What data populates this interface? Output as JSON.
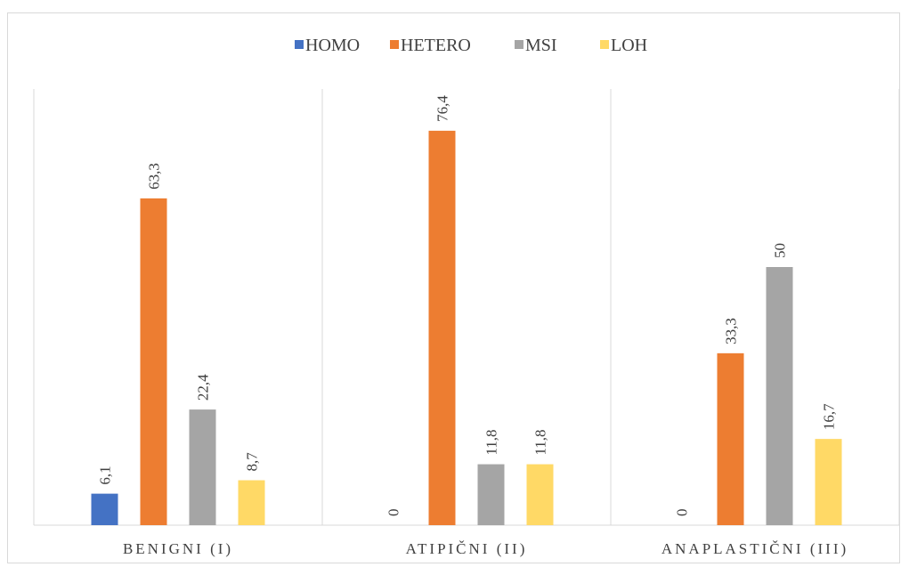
{
  "chart_data": {
    "type": "bar",
    "categories": [
      "BENIGNI (I)",
      "ATIPIČNI (II)",
      "ANAPLASTIČNI (III)"
    ],
    "series": [
      {
        "name": "HOMO",
        "color": "#4472c4",
        "values": [
          6.1,
          0,
          0
        ],
        "labels": [
          "6,1",
          "0",
          "0"
        ]
      },
      {
        "name": "HETERO",
        "color": "#ed7d31",
        "values": [
          63.3,
          76.4,
          33.3
        ],
        "labels": [
          "63,3",
          "76,4",
          "33,3"
        ]
      },
      {
        "name": "MSI",
        "color": "#a5a5a5",
        "values": [
          22.4,
          11.8,
          50
        ],
        "labels": [
          "22,4",
          "11,8",
          "50"
        ]
      },
      {
        "name": "LOH",
        "color": "#ffd966",
        "values": [
          8.7,
          11.8,
          16.7
        ],
        "labels": [
          "8,7",
          "11,8",
          "16,7"
        ]
      }
    ],
    "ylim": [
      0,
      100
    ],
    "grid": "vertical category separators",
    "legend_position": "top",
    "data_labels": "rotated vertical above bars"
  }
}
